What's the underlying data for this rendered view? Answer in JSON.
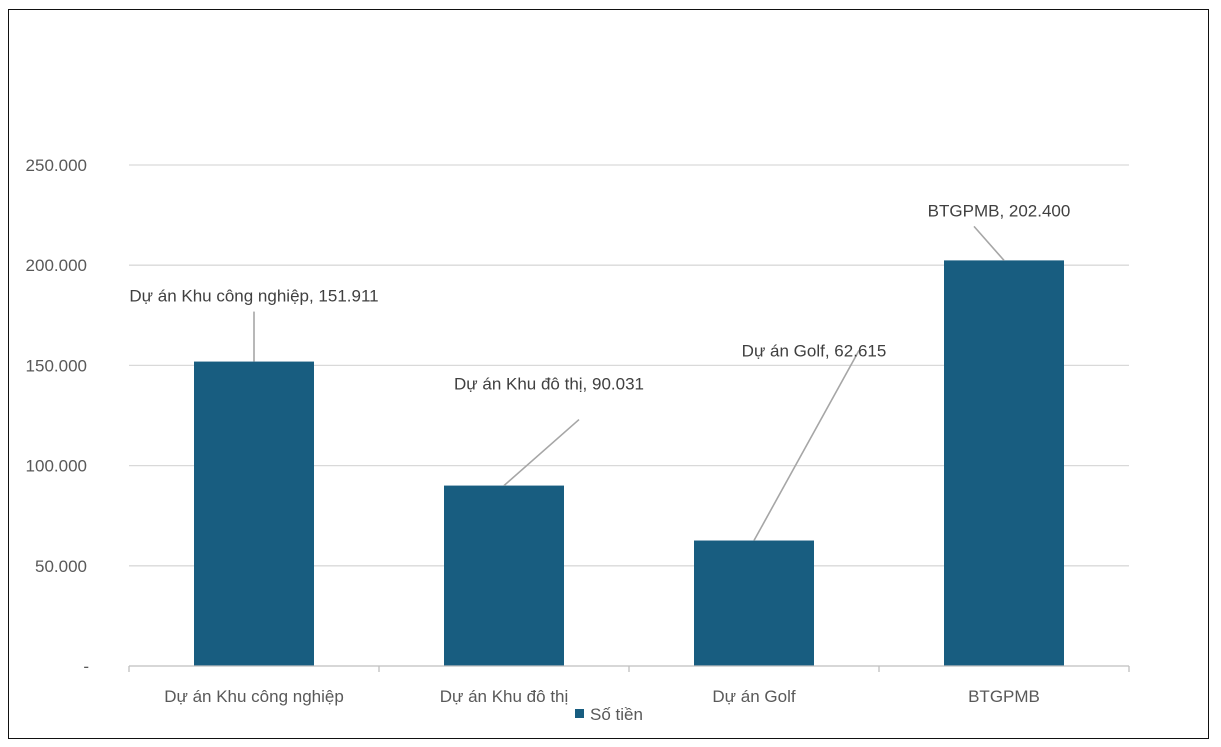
{
  "chart_data": {
    "type": "bar",
    "categories": [
      "Dự án Khu công nghiệp",
      "Dự án Khu đô thị",
      "Dự án Golf",
      "BTGPMB"
    ],
    "series": [
      {
        "name": "Số tiền",
        "values": [
          151911,
          90031,
          62615,
          202400
        ]
      }
    ],
    "data_labels": [
      "Dự án Khu công nghiệp, 151.911",
      "Dự án Khu đô thị, 90.031",
      "Dự án Golf, 62.615",
      "BTGPMB, 202.400"
    ],
    "yticks": [
      "-",
      "50.000",
      "100.000",
      "150.000",
      "200.000",
      "250.000"
    ],
    "ylim": [
      0,
      250000
    ],
    "grid": true,
    "legend": "bottom",
    "colors": {
      "bar": "#185D80",
      "grid": "#D9D9D9",
      "leader": "#A6A6A6",
      "axis": "#BFBFBF"
    }
  }
}
